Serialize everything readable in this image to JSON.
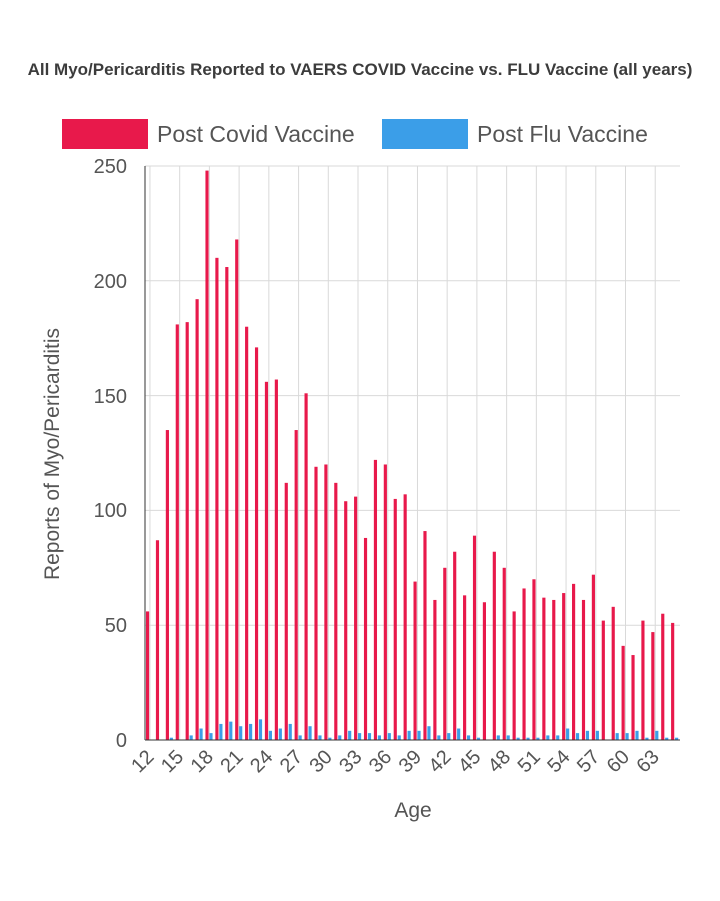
{
  "chart_data": {
    "type": "bar",
    "title": "All Myo/Pericarditis Reported to VAERS COVID Vaccine vs. FLU Vaccine (all years)",
    "xlabel": "Age",
    "ylabel": "Reports of Myo/Pericarditis",
    "ylim": [
      0,
      250
    ],
    "y_ticks": [
      "0",
      "50",
      "100",
      "150",
      "200",
      "250"
    ],
    "x_tick_labels": [
      "12",
      "15",
      "18",
      "21",
      "24",
      "27",
      "30",
      "33",
      "36",
      "39",
      "42",
      "45",
      "48",
      "51",
      "54",
      "57",
      "60",
      "63"
    ],
    "categories": [
      "12",
      "13",
      "14",
      "15",
      "16",
      "17",
      "18",
      "19",
      "20",
      "21",
      "22",
      "23",
      "24",
      "25",
      "26",
      "27",
      "28",
      "29",
      "30",
      "31",
      "32",
      "33",
      "34",
      "35",
      "36",
      "37",
      "38",
      "39",
      "40",
      "41",
      "42",
      "43",
      "44",
      "45",
      "46",
      "47",
      "48",
      "49",
      "50",
      "51",
      "52",
      "53",
      "54",
      "55",
      "56",
      "57",
      "58",
      "59",
      "60",
      "61",
      "62",
      "63",
      "64",
      "65"
    ],
    "grid": true,
    "legend_position": "top",
    "series": [
      {
        "name": "Post Covid Vaccine",
        "color": "#e8194b",
        "values": [
          56,
          87,
          135,
          181,
          182,
          192,
          248,
          210,
          206,
          218,
          180,
          171,
          156,
          157,
          112,
          135,
          151,
          119,
          120,
          112,
          104,
          106,
          88,
          122,
          120,
          105,
          107,
          69,
          91,
          61,
          75,
          82,
          63,
          89,
          60,
          82,
          75,
          56,
          66,
          70,
          62,
          61,
          64,
          68,
          61,
          72,
          52,
          58,
          41,
          37,
          52,
          47,
          55,
          51
        ]
      },
      {
        "name": "Post Flu Vaccine",
        "color": "#3b9ee8",
        "values": [
          0,
          0,
          1,
          0,
          2,
          5,
          3,
          7,
          8,
          6,
          7,
          9,
          4,
          5,
          7,
          2,
          6,
          2,
          1,
          2,
          4,
          3,
          3,
          2,
          3,
          2,
          4,
          4,
          6,
          2,
          3,
          5,
          2,
          1,
          0,
          2,
          2,
          1,
          1,
          1,
          2,
          2,
          5,
          3,
          4,
          4,
          0,
          3,
          3,
          4,
          1,
          4,
          1,
          1
        ]
      }
    ]
  }
}
